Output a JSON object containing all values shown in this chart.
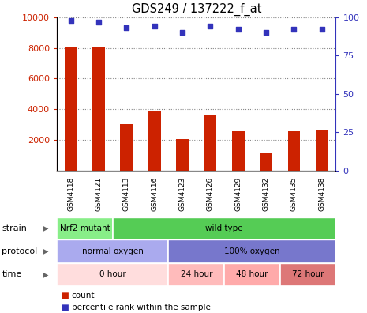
{
  "title": "GDS249 / 137222_f_at",
  "samples": [
    "GSM4118",
    "GSM4121",
    "GSM4113",
    "GSM4116",
    "GSM4123",
    "GSM4126",
    "GSM4129",
    "GSM4132",
    "GSM4135",
    "GSM4138"
  ],
  "counts": [
    8050,
    8100,
    3050,
    3900,
    2050,
    3650,
    2550,
    1100,
    2550,
    2600
  ],
  "percentiles": [
    98,
    97,
    93,
    94,
    90,
    94,
    92,
    90,
    92,
    92
  ],
  "bar_color": "#cc2200",
  "dot_color": "#3333bb",
  "ylim_left": [
    0,
    10000
  ],
  "ylim_right": [
    0,
    100
  ],
  "yticks_left": [
    2000,
    4000,
    6000,
    8000,
    10000
  ],
  "yticks_right": [
    0,
    25,
    50,
    75,
    100
  ],
  "strain_groups": [
    {
      "label": "Nrf2 mutant",
      "start": 0,
      "end": 2,
      "color": "#88ee88"
    },
    {
      "label": "wild type",
      "start": 2,
      "end": 10,
      "color": "#55cc55"
    }
  ],
  "protocol_groups": [
    {
      "label": "normal oxygen",
      "start": 0,
      "end": 4,
      "color": "#aaaaee"
    },
    {
      "label": "100% oxygen",
      "start": 4,
      "end": 10,
      "color": "#7777cc"
    }
  ],
  "time_groups": [
    {
      "label": "0 hour",
      "start": 0,
      "end": 4,
      "color": "#ffdddd"
    },
    {
      "label": "24 hour",
      "start": 4,
      "end": 6,
      "color": "#ffbbbb"
    },
    {
      "label": "48 hour",
      "start": 6,
      "end": 8,
      "color": "#ffaaaa"
    },
    {
      "label": "72 hour",
      "start": 8,
      "end": 10,
      "color": "#dd7777"
    }
  ],
  "row_labels": [
    "strain",
    "protocol",
    "time"
  ],
  "legend_count_color": "#cc2200",
  "legend_dot_color": "#3333bb",
  "background_color": "#ffffff",
  "sample_box_color": "#cccccc",
  "grid_color": "#888888"
}
